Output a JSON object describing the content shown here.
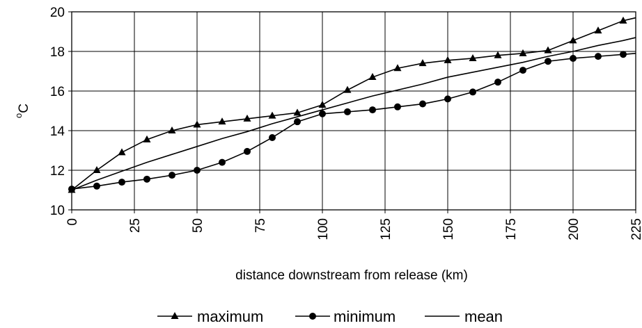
{
  "chart_data": {
    "type": "line",
    "xlabel": "distance downstream from release (km)",
    "ylabel_base": "C",
    "ylabel_super": "o",
    "xlim": [
      0,
      225
    ],
    "ylim": [
      10,
      20
    ],
    "xticks": [
      0,
      25,
      50,
      75,
      100,
      125,
      150,
      175,
      200,
      225
    ],
    "yticks": [
      10,
      12,
      14,
      16,
      18,
      20
    ],
    "grid": true,
    "legend": "bottom",
    "series": [
      {
        "name": "maximum",
        "marker": "triangle",
        "x": [
          0,
          10,
          20,
          30,
          40,
          50,
          60,
          70,
          80,
          90,
          100,
          110,
          120,
          130,
          140,
          150,
          160,
          170,
          180,
          190,
          200,
          210,
          220,
          225
        ],
        "y": [
          11.0,
          12.0,
          12.9,
          13.55,
          14.0,
          14.3,
          14.45,
          14.6,
          14.75,
          14.9,
          15.3,
          16.05,
          16.7,
          17.15,
          17.4,
          17.55,
          17.65,
          17.8,
          17.9,
          18.05,
          18.55,
          19.05,
          19.55,
          19.7
        ],
        "marked": [
          true,
          true,
          true,
          true,
          true,
          true,
          true,
          true,
          true,
          true,
          true,
          true,
          true,
          true,
          true,
          true,
          true,
          true,
          true,
          true,
          true,
          true,
          true,
          false
        ]
      },
      {
        "name": "minimum",
        "marker": "circle",
        "x": [
          0,
          10,
          20,
          30,
          40,
          50,
          60,
          70,
          80,
          90,
          100,
          110,
          120,
          130,
          140,
          150,
          160,
          170,
          180,
          190,
          200,
          210,
          220,
          225
        ],
        "y": [
          11.05,
          11.2,
          11.4,
          11.55,
          11.75,
          12.0,
          12.4,
          12.95,
          13.65,
          14.45,
          14.85,
          14.95,
          15.05,
          15.2,
          15.35,
          15.6,
          15.95,
          16.45,
          17.05,
          17.5,
          17.65,
          17.75,
          17.85,
          17.9
        ],
        "marked": [
          true,
          true,
          true,
          true,
          true,
          true,
          true,
          true,
          true,
          true,
          true,
          true,
          true,
          true,
          true,
          true,
          true,
          true,
          true,
          true,
          true,
          true,
          true,
          false
        ]
      },
      {
        "name": "mean",
        "marker": "none",
        "x": [
          0,
          10,
          20,
          30,
          40,
          50,
          60,
          70,
          80,
          90,
          100,
          110,
          120,
          130,
          140,
          150,
          160,
          170,
          180,
          190,
          200,
          210,
          220,
          225
        ],
        "y": [
          11.0,
          11.5,
          11.95,
          12.4,
          12.8,
          13.2,
          13.6,
          13.95,
          14.35,
          14.7,
          15.05,
          15.4,
          15.75,
          16.05,
          16.35,
          16.7,
          16.95,
          17.2,
          17.45,
          17.75,
          18.0,
          18.3,
          18.55,
          18.7
        ]
      }
    ]
  }
}
